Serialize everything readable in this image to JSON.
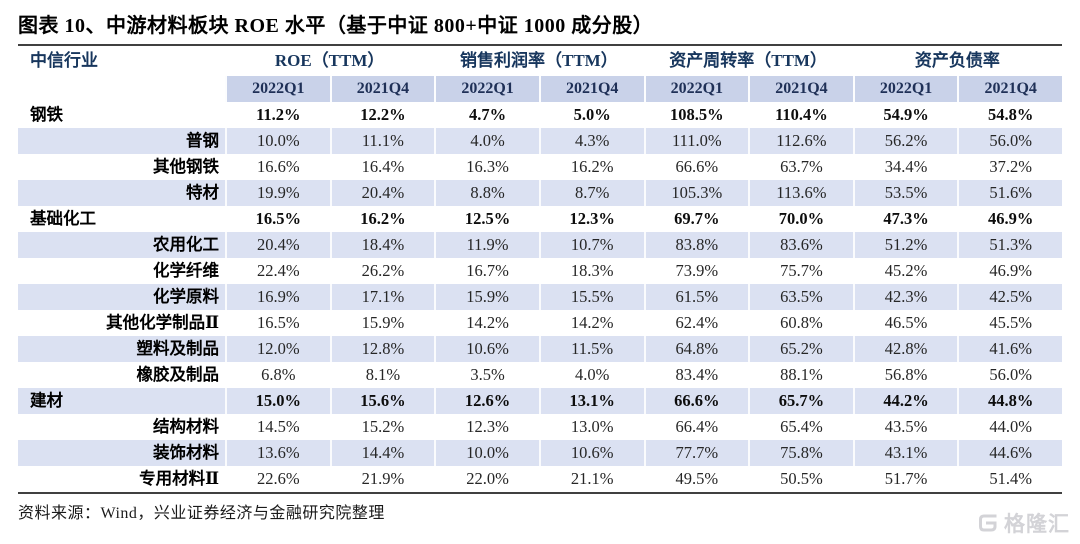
{
  "title": "图表 10、中游材料板块 ROE 水平（基于中证 800+中证 1000 成分股）",
  "colors": {
    "band": "#c9d2e9",
    "stripe": "#dbe1f2",
    "header_text": "#17365d",
    "rule": "#404040"
  },
  "table": {
    "row_header": "中信行业",
    "groups": [
      "ROE（TTM）",
      "销售利润率（TTM）",
      "资产周转率（TTM）",
      "资产负债率"
    ],
    "quarters": [
      "2022Q1",
      "2021Q4",
      "2022Q1",
      "2021Q4",
      "2022Q1",
      "2021Q4",
      "2022Q1",
      "2021Q4"
    ],
    "rows": [
      {
        "label": "钢铁",
        "level": "parent",
        "values": [
          "11.2%",
          "12.2%",
          "4.7%",
          "5.0%",
          "108.5%",
          "110.4%",
          "54.9%",
          "54.8%"
        ]
      },
      {
        "label": "普钢",
        "level": "child",
        "values": [
          "10.0%",
          "11.1%",
          "4.0%",
          "4.3%",
          "111.0%",
          "112.6%",
          "56.2%",
          "56.0%"
        ]
      },
      {
        "label": "其他钢铁",
        "level": "child",
        "values": [
          "16.6%",
          "16.4%",
          "16.3%",
          "16.2%",
          "66.6%",
          "63.7%",
          "34.4%",
          "37.2%"
        ]
      },
      {
        "label": "特材",
        "level": "child",
        "values": [
          "19.9%",
          "20.4%",
          "8.8%",
          "8.7%",
          "105.3%",
          "113.6%",
          "53.5%",
          "51.6%"
        ]
      },
      {
        "label": "基础化工",
        "level": "parent",
        "values": [
          "16.5%",
          "16.2%",
          "12.5%",
          "12.3%",
          "69.7%",
          "70.0%",
          "47.3%",
          "46.9%"
        ]
      },
      {
        "label": "农用化工",
        "level": "child",
        "values": [
          "20.4%",
          "18.4%",
          "11.9%",
          "10.7%",
          "83.8%",
          "83.6%",
          "51.2%",
          "51.3%"
        ]
      },
      {
        "label": "化学纤维",
        "level": "child",
        "values": [
          "22.4%",
          "26.2%",
          "16.7%",
          "18.3%",
          "73.9%",
          "75.7%",
          "45.2%",
          "46.9%"
        ]
      },
      {
        "label": "化学原料",
        "level": "child",
        "values": [
          "16.9%",
          "17.1%",
          "15.9%",
          "15.5%",
          "61.5%",
          "63.5%",
          "42.3%",
          "42.5%"
        ]
      },
      {
        "label": "其他化学制品Ⅱ",
        "level": "child",
        "values": [
          "16.5%",
          "15.9%",
          "14.2%",
          "14.2%",
          "62.4%",
          "60.8%",
          "46.5%",
          "45.5%"
        ]
      },
      {
        "label": "塑料及制品",
        "level": "child",
        "values": [
          "12.0%",
          "12.8%",
          "10.6%",
          "11.5%",
          "64.8%",
          "65.2%",
          "42.8%",
          "41.6%"
        ]
      },
      {
        "label": "橡胶及制品",
        "level": "child",
        "values": [
          "6.8%",
          "8.1%",
          "3.5%",
          "4.0%",
          "83.4%",
          "88.1%",
          "56.8%",
          "56.0%"
        ]
      },
      {
        "label": "建材",
        "level": "parent",
        "values": [
          "15.0%",
          "15.6%",
          "12.6%",
          "13.1%",
          "66.6%",
          "65.7%",
          "44.2%",
          "44.8%"
        ]
      },
      {
        "label": "结构材料",
        "level": "child",
        "values": [
          "14.5%",
          "15.2%",
          "12.3%",
          "13.0%",
          "66.4%",
          "65.4%",
          "43.5%",
          "44.0%"
        ]
      },
      {
        "label": "装饰材料",
        "level": "child",
        "values": [
          "13.6%",
          "14.4%",
          "10.0%",
          "10.6%",
          "77.7%",
          "75.8%",
          "43.1%",
          "44.6%"
        ]
      },
      {
        "label": "专用材料Ⅱ",
        "level": "child",
        "values": [
          "22.6%",
          "21.9%",
          "22.0%",
          "21.1%",
          "49.5%",
          "50.5%",
          "51.7%",
          "51.4%"
        ]
      }
    ]
  },
  "footer": {
    "source": "资料来源：Wind，兴业证券经济与金融研究院整理"
  },
  "watermark": {
    "text": "格隆汇"
  }
}
